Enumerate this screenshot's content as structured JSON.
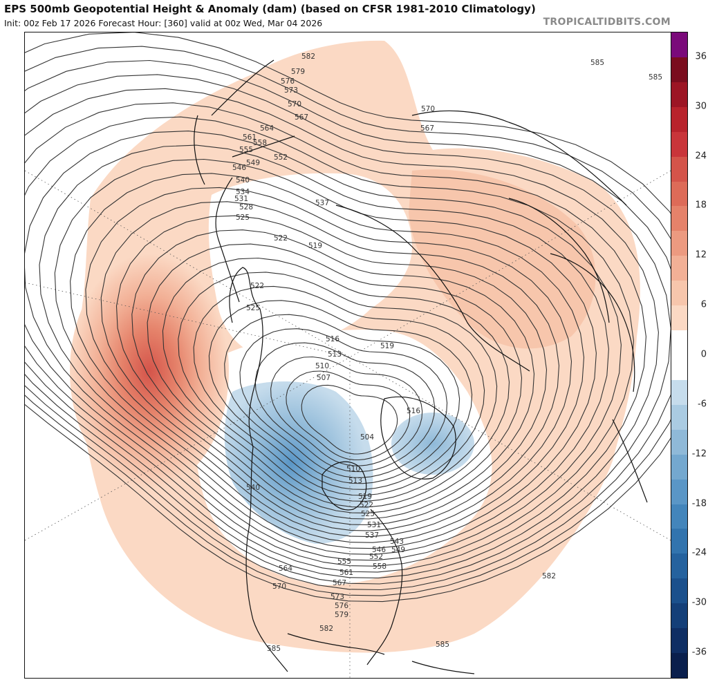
{
  "header": {
    "title": "EPS 500mb Geopotential Height & Anomaly (dam) (based on CFSR 1981-2010 Climatology)",
    "init_info": "Init: 00z Feb 17 2026   Forecast Hour: [360]   valid at 00z Wed, Mar 04 2026",
    "brand": "TROPICALTIDBITS.COM"
  },
  "colorbar": {
    "unit": "dam",
    "tick_labels": [
      "36",
      "30",
      "24",
      "18",
      "12",
      "6",
      "0",
      "-6",
      "-12",
      "-18",
      "-24",
      "-30",
      "-36"
    ],
    "bins": [
      {
        "from": 36,
        "to": 39,
        "color": "#7a0a7a"
      },
      {
        "from": 33,
        "to": 36,
        "color": "#7a0d1e"
      },
      {
        "from": 30,
        "to": 33,
        "color": "#9c1524"
      },
      {
        "from": 27,
        "to": 30,
        "color": "#b8232c"
      },
      {
        "from": 24,
        "to": 27,
        "color": "#c9353a"
      },
      {
        "from": 21,
        "to": 24,
        "color": "#d4544a"
      },
      {
        "from": 18,
        "to": 21,
        "color": "#dd6b58"
      },
      {
        "from": 15,
        "to": 18,
        "color": "#e5826a"
      },
      {
        "from": 12,
        "to": 15,
        "color": "#ec9a80"
      },
      {
        "from": 9,
        "to": 12,
        "color": "#f2b096"
      },
      {
        "from": 6,
        "to": 9,
        "color": "#f7c6ac"
      },
      {
        "from": 3,
        "to": 6,
        "color": "#fbd9c4"
      },
      {
        "from": -3,
        "to": 3,
        "color": "#ffffff"
      },
      {
        "from": -6,
        "to": -3,
        "color": "#c6dcec"
      },
      {
        "from": -9,
        "to": -6,
        "color": "#aacbe2"
      },
      {
        "from": -12,
        "to": -9,
        "color": "#8fb9d8"
      },
      {
        "from": -15,
        "to": -12,
        "color": "#74a8cf"
      },
      {
        "from": -18,
        "to": -15,
        "color": "#5a96c6"
      },
      {
        "from": -21,
        "to": -18,
        "color": "#4385bb"
      },
      {
        "from": -24,
        "to": -21,
        "color": "#3274ae"
      },
      {
        "from": -27,
        "to": -24,
        "color": "#25629e"
      },
      {
        "from": -30,
        "to": -27,
        "color": "#1b508c"
      },
      {
        "from": -33,
        "to": -30,
        "color": "#143f78"
      },
      {
        "from": -36,
        "to": -33,
        "color": "#0f2e63"
      },
      {
        "from": -39,
        "to": -36,
        "color": "#0a1f4c"
      }
    ]
  },
  "contour_labels": [
    "582",
    "579",
    "576",
    "573",
    "570",
    "567",
    "564",
    "561",
    "558",
    "555",
    "552",
    "549",
    "546",
    "540",
    "537",
    "534",
    "531",
    "528",
    "525",
    "522",
    "519",
    "516",
    "513",
    "510",
    "507",
    "504",
    "543",
    "585"
  ],
  "colors": {
    "contour": "#333333",
    "coast": "#111111",
    "positive_anomaly": "#f7c6ac",
    "negative_anomaly": "#8fb9d8"
  }
}
